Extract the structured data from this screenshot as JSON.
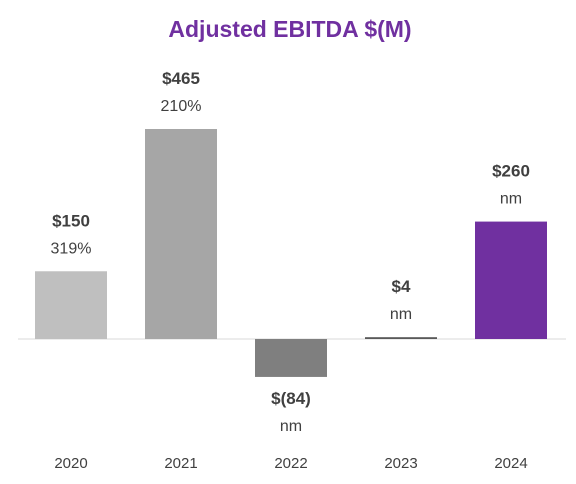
{
  "chart_data": {
    "type": "bar",
    "title": "Adjusted EBITDA $(M)",
    "categories": [
      "2020",
      "2021",
      "2022",
      "2023",
      "2024"
    ],
    "values": [
      150,
      465,
      -84,
      4,
      260
    ],
    "value_labels": [
      "$150",
      "$465",
      "$(84)",
      "$4",
      "$260"
    ],
    "growth_labels": [
      "319%",
      "210%",
      "nm",
      "nm",
      "nm"
    ],
    "bar_colors": [
      "#bfbfbf",
      "#a6a6a6",
      "#7f7f7f",
      "#595959",
      "#7030a0"
    ],
    "title_color": "#7030a0",
    "ylim": [
      -84,
      465
    ],
    "grid": false,
    "legend": "none"
  }
}
